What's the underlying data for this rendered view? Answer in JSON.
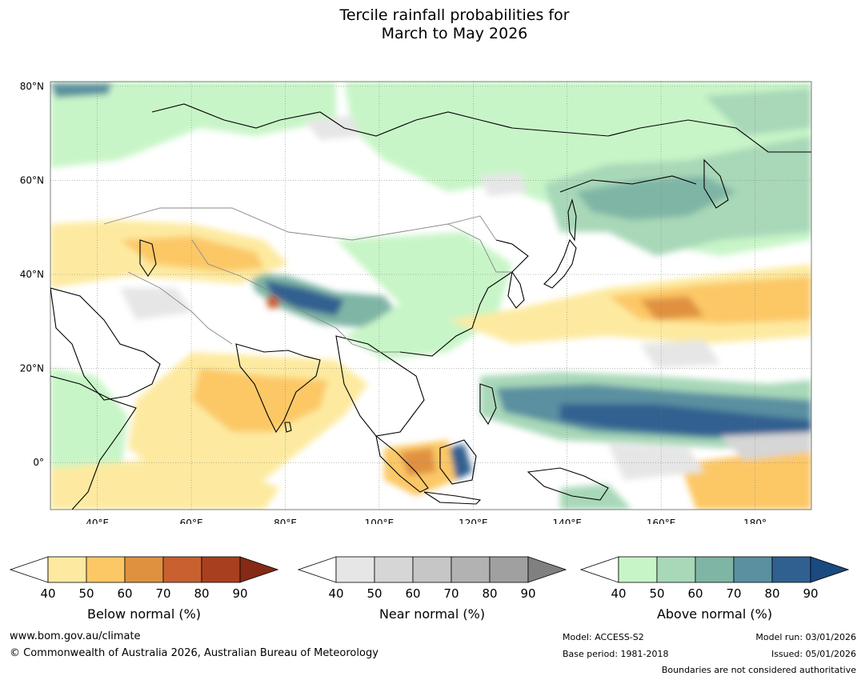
{
  "title": {
    "line1": "Tercile rainfall probabilities for",
    "line2": "March to May 2026"
  },
  "map": {
    "lat_labels": [
      "80°N",
      "60°N",
      "40°N",
      "20°N",
      "0°"
    ],
    "lon_labels": [
      "40°E",
      "60°E",
      "80°E",
      "100°E",
      "120°E",
      "140°E",
      "160°E",
      "180°"
    ],
    "lat_range": [
      -10,
      81
    ],
    "lon_range": [
      30,
      192
    ]
  },
  "colorbars": [
    {
      "name": "below",
      "title": "Below normal (%)",
      "ticks": [
        "40",
        "50",
        "60",
        "70",
        "80",
        "90"
      ],
      "colors": [
        "#ffffff",
        "#fdeaa0",
        "#fcc866",
        "#e0913f",
        "#c8612f",
        "#a8401f",
        "#852a14"
      ]
    },
    {
      "name": "near",
      "title": "Near normal (%)",
      "ticks": [
        "40",
        "50",
        "60",
        "70",
        "80",
        "90"
      ],
      "colors": [
        "#ffffff",
        "#e6e6e6",
        "#d6d6d6",
        "#c6c6c6",
        "#b2b2b2",
        "#a0a0a0",
        "#808080"
      ]
    },
    {
      "name": "above",
      "title": "Above normal (%)",
      "ticks": [
        "40",
        "50",
        "60",
        "70",
        "80",
        "90"
      ],
      "colors": [
        "#ffffff",
        "#c8f5c8",
        "#a8d8b8",
        "#7fb5a5",
        "#5a90a0",
        "#306090",
        "#1a4a80"
      ]
    }
  ],
  "footer": {
    "website": "www.bom.gov.au/climate",
    "copyright": "© Commonwealth of Australia 2026, Australian Bureau of Meteorology",
    "model": "Model: ACCESS-S2",
    "base_period": "Base period: 1981-2018",
    "model_run": "Model run: 03/01/2026",
    "issued": "Issued: 05/01/2026",
    "boundaries_note": "Boundaries are not considered authoritative"
  }
}
